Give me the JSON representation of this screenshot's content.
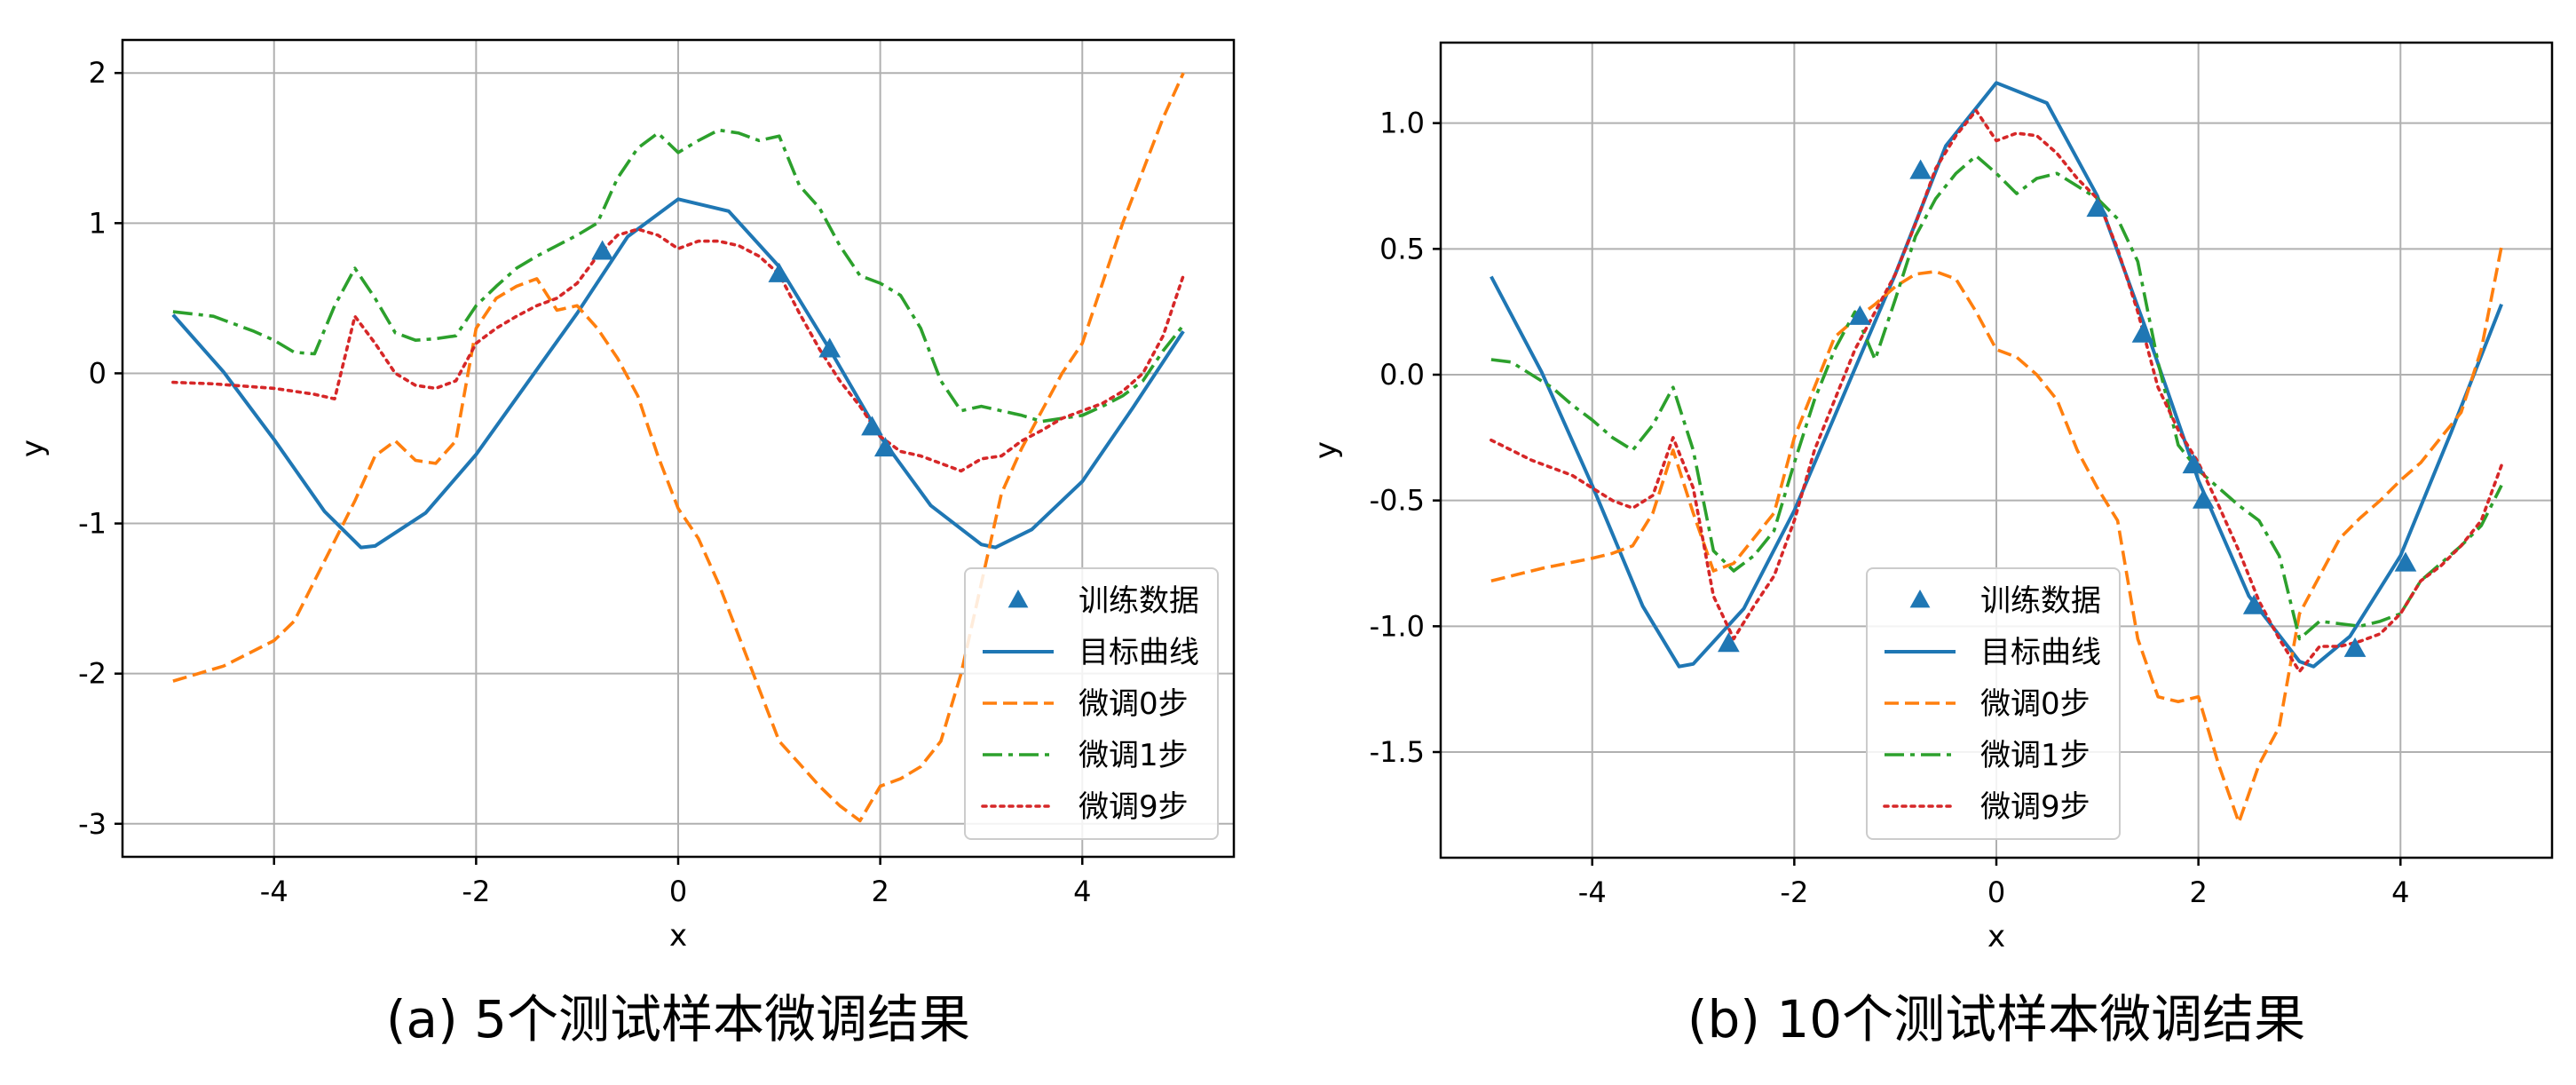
{
  "chart_data": [
    {
      "type": "line",
      "caption": "(a) 5个测试样本微调结果",
      "xlabel": "x",
      "ylabel": "y",
      "xlim": [
        -5.5,
        5.5
      ],
      "ylim": [
        -3.22,
        2.22
      ],
      "xticks": [
        -4,
        -2,
        0,
        2,
        4
      ],
      "xtick_labels": [
        "-4",
        "-2",
        "0",
        "2",
        "4"
      ],
      "yticks": [
        -3,
        -2,
        -1,
        0,
        1,
        2
      ],
      "ytick_labels": [
        "-3",
        "-2",
        "-1",
        "0",
        "1",
        "2"
      ],
      "grid": true,
      "legend_position": "lower-right",
      "series": [
        {
          "name": "目标曲线",
          "style": "solid",
          "color": "#1f77b4",
          "x": [
            -5.0,
            -4.5,
            -4.0,
            -3.5,
            -3.14,
            -3.0,
            -2.5,
            -2.0,
            -1.5,
            -1.0,
            -0.5,
            0.0,
            0.5,
            1.0,
            1.5,
            2.0,
            2.5,
            3.0,
            3.14,
            3.5,
            4.0,
            4.5,
            5.0
          ],
          "y": [
            0.39,
            0.01,
            -0.44,
            -0.92,
            -1.16,
            -1.15,
            -0.93,
            -0.54,
            -0.07,
            0.4,
            0.91,
            1.16,
            1.08,
            0.71,
            0.16,
            -0.42,
            -0.88,
            -1.14,
            -1.16,
            -1.04,
            -0.72,
            -0.23,
            0.28
          ]
        },
        {
          "name": "微调0步",
          "style": "dashed",
          "color": "#ff7f0e",
          "x": [
            -5.0,
            -4.5,
            -4.0,
            -3.8,
            -3.5,
            -3.2,
            -3.0,
            -2.8,
            -2.6,
            -2.4,
            -2.2,
            -2.0,
            -1.8,
            -1.6,
            -1.4,
            -1.2,
            -1.0,
            -0.8,
            -0.6,
            -0.4,
            -0.2,
            0.0,
            0.2,
            0.4,
            0.6,
            0.8,
            1.0,
            1.2,
            1.4,
            1.6,
            1.8,
            2.0,
            2.2,
            2.4,
            2.6,
            2.8,
            3.0,
            3.2,
            3.4,
            3.6,
            3.8,
            4.0,
            4.2,
            4.4,
            4.6,
            4.8,
            5.0
          ],
          "y": [
            -2.05,
            -1.95,
            -1.78,
            -1.65,
            -1.25,
            -0.85,
            -0.55,
            -0.45,
            -0.58,
            -0.6,
            -0.45,
            0.3,
            0.5,
            0.58,
            0.63,
            0.42,
            0.45,
            0.3,
            0.1,
            -0.15,
            -0.55,
            -0.9,
            -1.1,
            -1.4,
            -1.75,
            -2.1,
            -2.45,
            -2.6,
            -2.75,
            -2.88,
            -2.98,
            -2.75,
            -2.7,
            -2.62,
            -2.45,
            -2.0,
            -1.4,
            -0.8,
            -0.5,
            -0.25,
            0.0,
            0.2,
            0.6,
            1.0,
            1.35,
            1.7,
            2.0
          ]
        },
        {
          "name": "微调1步",
          "style": "dashdot",
          "color": "#2ca02c",
          "x": [
            -5.0,
            -4.6,
            -4.2,
            -4.0,
            -3.8,
            -3.6,
            -3.4,
            -3.2,
            -3.0,
            -2.8,
            -2.6,
            -2.4,
            -2.2,
            -2.0,
            -1.8,
            -1.6,
            -1.4,
            -1.2,
            -1.0,
            -0.8,
            -0.6,
            -0.4,
            -0.2,
            0.0,
            0.2,
            0.4,
            0.6,
            0.8,
            1.0,
            1.2,
            1.4,
            1.6,
            1.8,
            2.0,
            2.2,
            2.4,
            2.6,
            2.8,
            3.0,
            3.2,
            3.4,
            3.6,
            3.8,
            4.0,
            4.2,
            4.4,
            4.6,
            4.8,
            5.0
          ],
          "y": [
            0.41,
            0.38,
            0.28,
            0.22,
            0.14,
            0.13,
            0.45,
            0.7,
            0.5,
            0.27,
            0.22,
            0.23,
            0.25,
            0.45,
            0.58,
            0.7,
            0.78,
            0.85,
            0.92,
            1.0,
            1.3,
            1.5,
            1.6,
            1.47,
            1.55,
            1.62,
            1.6,
            1.55,
            1.58,
            1.25,
            1.1,
            0.85,
            0.65,
            0.6,
            0.52,
            0.3,
            -0.05,
            -0.25,
            -0.22,
            -0.25,
            -0.28,
            -0.32,
            -0.3,
            -0.28,
            -0.22,
            -0.15,
            -0.05,
            0.15,
            0.32
          ]
        },
        {
          "name": "微调9步",
          "style": "dotted",
          "color": "#d62728",
          "x": [
            -5.0,
            -4.6,
            -4.2,
            -4.0,
            -3.8,
            -3.6,
            -3.4,
            -3.2,
            -3.0,
            -2.8,
            -2.6,
            -2.4,
            -2.2,
            -2.0,
            -1.8,
            -1.6,
            -1.4,
            -1.2,
            -1.0,
            -0.8,
            -0.6,
            -0.4,
            -0.2,
            0.0,
            0.2,
            0.4,
            0.6,
            0.8,
            1.0,
            1.2,
            1.4,
            1.6,
            1.8,
            2.0,
            2.2,
            2.4,
            2.6,
            2.8,
            3.0,
            3.2,
            3.4,
            3.6,
            3.8,
            4.0,
            4.2,
            4.4,
            4.6,
            4.8,
            5.0
          ],
          "y": [
            -0.06,
            -0.07,
            -0.09,
            -0.1,
            -0.12,
            -0.14,
            -0.17,
            0.38,
            0.2,
            0.0,
            -0.08,
            -0.1,
            -0.05,
            0.2,
            0.3,
            0.38,
            0.45,
            0.5,
            0.6,
            0.78,
            0.92,
            0.96,
            0.92,
            0.83,
            0.88,
            0.88,
            0.85,
            0.78,
            0.66,
            0.4,
            0.16,
            -0.05,
            -0.22,
            -0.42,
            -0.52,
            -0.55,
            -0.6,
            -0.65,
            -0.57,
            -0.55,
            -0.45,
            -0.38,
            -0.3,
            -0.25,
            -0.2,
            -0.12,
            0.0,
            0.25,
            0.65
          ]
        }
      ],
      "scatter": {
        "name": "训练数据",
        "marker": "triangle",
        "color": "#1f77b4",
        "x": [
          -0.75,
          1.0,
          1.5,
          1.92,
          2.05
        ],
        "y": [
          0.81,
          0.66,
          0.16,
          -0.36,
          -0.5
        ]
      }
    },
    {
      "type": "line",
      "caption": "(b) 10个测试样本微调结果",
      "xlabel": "x",
      "ylabel": "y",
      "xlim": [
        -5.5,
        5.5
      ],
      "ylim": [
        -1.92,
        1.32
      ],
      "xticks": [
        -4,
        -2,
        0,
        2,
        4
      ],
      "xtick_labels": [
        "-4",
        "-2",
        "0",
        "2",
        "4"
      ],
      "yticks": [
        -1.5,
        -1.0,
        -0.5,
        0.0,
        0.5,
        1.0
      ],
      "ytick_labels": [
        "-1.5",
        "-1.0",
        "-0.5",
        "0.0",
        "0.5",
        "1.0"
      ],
      "grid": true,
      "legend_position": "lower-center",
      "series": [
        {
          "name": "目标曲线",
          "style": "solid",
          "color": "#1f77b4",
          "x": [
            -5.0,
            -4.5,
            -4.0,
            -3.5,
            -3.14,
            -3.0,
            -2.5,
            -2.0,
            -1.5,
            -1.0,
            -0.5,
            0.0,
            0.5,
            1.0,
            1.5,
            2.0,
            2.5,
            3.0,
            3.14,
            3.5,
            4.0,
            4.5,
            5.0
          ],
          "y": [
            0.39,
            0.01,
            -0.44,
            -0.92,
            -1.16,
            -1.15,
            -0.93,
            -0.54,
            -0.07,
            0.4,
            0.91,
            1.16,
            1.08,
            0.71,
            0.16,
            -0.42,
            -0.88,
            -1.14,
            -1.16,
            -1.04,
            -0.72,
            -0.23,
            0.28
          ]
        },
        {
          "name": "微调0步",
          "style": "dashed",
          "color": "#ff7f0e",
          "x": [
            -5.0,
            -4.5,
            -4.0,
            -3.8,
            -3.6,
            -3.4,
            -3.2,
            -3.0,
            -2.8,
            -2.6,
            -2.4,
            -2.2,
            -2.0,
            -1.8,
            -1.6,
            -1.4,
            -1.2,
            -1.0,
            -0.8,
            -0.6,
            -0.4,
            -0.2,
            0.0,
            0.2,
            0.4,
            0.6,
            0.8,
            1.0,
            1.2,
            1.4,
            1.6,
            1.8,
            2.0,
            2.2,
            2.4,
            2.6,
            2.8,
            3.0,
            3.2,
            3.4,
            3.6,
            3.8,
            4.0,
            4.2,
            4.4,
            4.6,
            4.8,
            5.0
          ],
          "y": [
            -0.82,
            -0.77,
            -0.73,
            -0.71,
            -0.68,
            -0.55,
            -0.3,
            -0.55,
            -0.78,
            -0.75,
            -0.65,
            -0.55,
            -0.25,
            -0.05,
            0.15,
            0.22,
            0.28,
            0.35,
            0.4,
            0.41,
            0.38,
            0.25,
            0.1,
            0.07,
            0.0,
            -0.1,
            -0.3,
            -0.45,
            -0.58,
            -1.05,
            -1.28,
            -1.3,
            -1.28,
            -1.55,
            -1.78,
            -1.55,
            -1.4,
            -0.95,
            -0.8,
            -0.65,
            -0.57,
            -0.5,
            -0.42,
            -0.35,
            -0.25,
            -0.15,
            0.1,
            0.51
          ]
        },
        {
          "name": "微调1步",
          "style": "dashdot",
          "color": "#2ca02c",
          "x": [
            -5.0,
            -4.8,
            -4.6,
            -4.4,
            -4.2,
            -4.0,
            -3.8,
            -3.6,
            -3.4,
            -3.2,
            -3.0,
            -2.8,
            -2.6,
            -2.4,
            -2.2,
            -2.0,
            -1.8,
            -1.6,
            -1.4,
            -1.2,
            -1.0,
            -0.8,
            -0.6,
            -0.4,
            -0.2,
            0.0,
            0.2,
            0.4,
            0.6,
            0.8,
            1.0,
            1.2,
            1.4,
            1.6,
            1.8,
            2.0,
            2.2,
            2.4,
            2.6,
            2.8,
            3.0,
            3.2,
            3.4,
            3.6,
            3.8,
            4.0,
            4.2,
            4.4,
            4.6,
            4.8,
            5.0
          ],
          "y": [
            0.06,
            0.05,
            0.0,
            -0.05,
            -0.12,
            -0.18,
            -0.25,
            -0.3,
            -0.2,
            -0.05,
            -0.3,
            -0.7,
            -0.78,
            -0.72,
            -0.62,
            -0.35,
            -0.1,
            0.1,
            0.25,
            0.06,
            0.3,
            0.55,
            0.7,
            0.8,
            0.87,
            0.8,
            0.72,
            0.78,
            0.8,
            0.75,
            0.7,
            0.62,
            0.45,
            0.05,
            -0.28,
            -0.38,
            -0.45,
            -0.52,
            -0.58,
            -0.72,
            -1.05,
            -0.98,
            -0.99,
            -1.0,
            -0.98,
            -0.95,
            -0.82,
            -0.75,
            -0.68,
            -0.6,
            -0.44
          ]
        },
        {
          "name": "微调9步",
          "style": "dotted",
          "color": "#d62728",
          "x": [
            -5.0,
            -4.8,
            -4.6,
            -4.4,
            -4.2,
            -4.0,
            -3.8,
            -3.6,
            -3.4,
            -3.2,
            -3.0,
            -2.8,
            -2.6,
            -2.4,
            -2.2,
            -2.0,
            -1.8,
            -1.6,
            -1.4,
            -1.2,
            -1.0,
            -0.8,
            -0.6,
            -0.4,
            -0.2,
            0.0,
            0.2,
            0.4,
            0.6,
            0.8,
            1.0,
            1.2,
            1.4,
            1.6,
            1.8,
            2.0,
            2.2,
            2.4,
            2.6,
            2.8,
            3.0,
            3.2,
            3.4,
            3.6,
            3.8,
            4.0,
            4.2,
            4.4,
            4.6,
            4.8,
            5.0
          ],
          "y": [
            -0.26,
            -0.3,
            -0.34,
            -0.37,
            -0.4,
            -0.45,
            -0.5,
            -0.53,
            -0.48,
            -0.25,
            -0.45,
            -0.88,
            -1.05,
            -0.92,
            -0.8,
            -0.58,
            -0.3,
            -0.1,
            0.1,
            0.25,
            0.4,
            0.6,
            0.82,
            0.95,
            1.05,
            0.93,
            0.96,
            0.95,
            0.88,
            0.78,
            0.7,
            0.5,
            0.25,
            -0.05,
            -0.22,
            -0.35,
            -0.52,
            -0.7,
            -0.9,
            -1.05,
            -1.18,
            -1.08,
            -1.08,
            -1.06,
            -1.03,
            -0.95,
            -0.82,
            -0.76,
            -0.68,
            -0.58,
            -0.36
          ]
        }
      ],
      "scatter": {
        "name": "训练数据",
        "marker": "triangle",
        "color": "#1f77b4",
        "x": [
          -2.65,
          -1.35,
          -0.75,
          1.0,
          1.45,
          1.95,
          2.05,
          2.55,
          3.55,
          4.05
        ],
        "y": [
          -1.07,
          0.23,
          0.81,
          0.66,
          0.16,
          -0.36,
          -0.5,
          -0.92,
          -1.09,
          -0.75
        ]
      }
    }
  ]
}
